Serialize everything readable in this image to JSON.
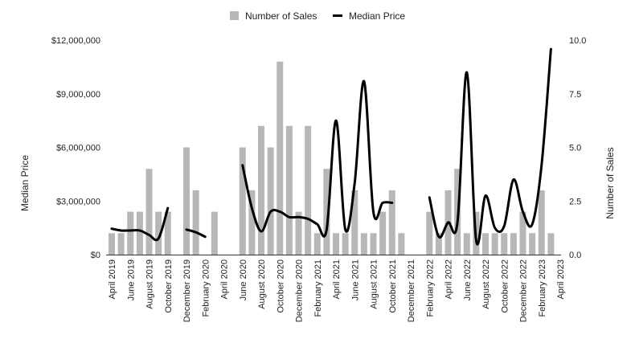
{
  "chart_data": {
    "type": "bar",
    "categories": [
      "April 2019",
      "May 2019",
      "June 2019",
      "July 2019",
      "August 2019",
      "September 2019",
      "October 2019",
      "November 2019",
      "December 2019",
      "January 2020",
      "February 2020",
      "March 2020",
      "April 2020",
      "May 2020",
      "June 2020",
      "July 2020",
      "August 2020",
      "September 2020",
      "October 2020",
      "November 2020",
      "December 2020",
      "January 2021",
      "February 2021",
      "March 2021",
      "April 2021",
      "May 2021",
      "June 2021",
      "July 2021",
      "August 2021",
      "September 2021",
      "October 2021",
      "November 2021",
      "December 2021",
      "January 2022",
      "February 2022",
      "March 2022",
      "April 2022",
      "May 2022",
      "June 2022",
      "July 2022",
      "August 2022",
      "September 2022",
      "October 2022",
      "November 2022",
      "December 2022",
      "January 2023",
      "February 2023",
      "March 2023",
      "April 2023"
    ],
    "x_tick_labels": [
      "April 2019",
      "June 2019",
      "August 2019",
      "October 2019",
      "December 2019",
      "February 2020",
      "April 2020",
      "June 2020",
      "August 2020",
      "October 2020",
      "December 2020",
      "February 2021",
      "April 2021",
      "June 2021",
      "August 2021",
      "October 2021",
      "December 2021",
      "February 2022",
      "April 2022",
      "June 2022",
      "August 2022",
      "October 2022",
      "December 2022",
      "February 2023",
      "April 2023"
    ],
    "series": [
      {
        "name": "Number of Sales",
        "axis": "right",
        "kind": "bar",
        "color": "#b7b7b7",
        "values": [
          1,
          1,
          2,
          2,
          4,
          2,
          2,
          0,
          5,
          3,
          0,
          2,
          0,
          0,
          5,
          3,
          6,
          5,
          9,
          6,
          2,
          6,
          1,
          4,
          1,
          1,
          3,
          1,
          1,
          2,
          3,
          1,
          0,
          0,
          2,
          1,
          3,
          4,
          1,
          2,
          1,
          1,
          1,
          1,
          2,
          1,
          3,
          1,
          0
        ]
      },
      {
        "name": "Median Price",
        "axis": "left",
        "kind": "line",
        "color": "#000000",
        "values": [
          1450000,
          1350000,
          1350000,
          1350000,
          1100000,
          900000,
          2600000,
          null,
          1400000,
          1250000,
          1000000,
          null,
          null,
          null,
          5000000,
          2600000,
          1300000,
          2400000,
          2400000,
          2100000,
          2100000,
          2000000,
          1700000,
          1400000,
          7500000,
          1400000,
          4000000,
          9700000,
          2400000,
          2900000,
          2900000,
          null,
          null,
          null,
          3200000,
          1000000,
          1800000,
          1800000,
          10200000,
          800000,
          3300000,
          1500000,
          1600000,
          4200000,
          2400000,
          1700000,
          5000000,
          11500000,
          null
        ]
      }
    ],
    "y_left": {
      "label": "Median Price",
      "min": 0,
      "max": 12000000,
      "ticks": [
        0,
        3000000,
        6000000,
        9000000,
        12000000
      ],
      "tick_labels": [
        "$0",
        "$3,000,000",
        "$6,000,000",
        "$9,000,000",
        "$12,000,000"
      ]
    },
    "y_right": {
      "label": "Number of Sales",
      "min": 0,
      "max": 10,
      "ticks": [
        0,
        2.5,
        5,
        7.5,
        10
      ],
      "tick_labels": [
        "0.0",
        "2.5",
        "5.0",
        "7.5",
        "10.0"
      ]
    },
    "legend": {
      "position": "top",
      "items": [
        "Number of Sales",
        "Median Price"
      ]
    },
    "grid": false,
    "title": ""
  }
}
